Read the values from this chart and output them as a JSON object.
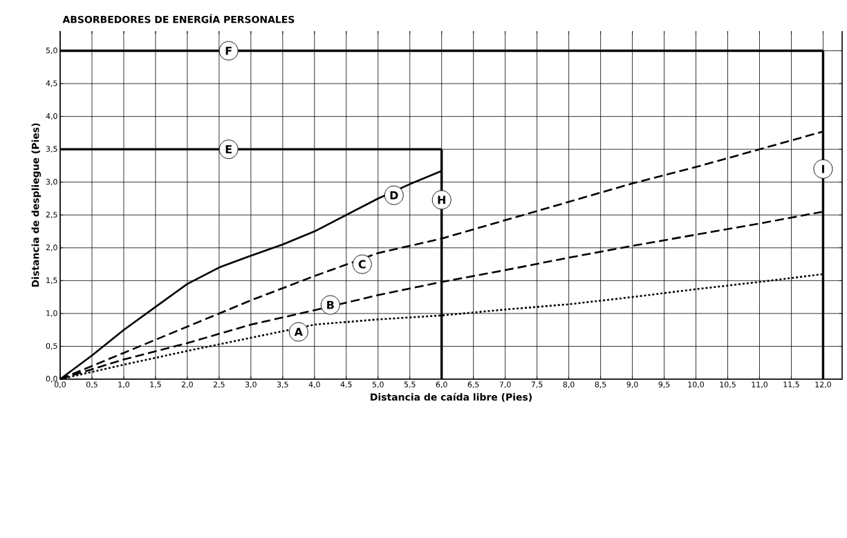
{
  "chart_data": {
    "type": "line",
    "title": "ABSORBEDORES DE ENERGÍA PERSONALES",
    "xlabel": "Distancia de caída libre (Pies)",
    "ylabel": "Distancia de despliegue (Pies)",
    "xlim": [
      0,
      12.3
    ],
    "ylim": [
      0,
      5.3
    ],
    "xticks": [
      {
        "value": 0,
        "label": "0,0"
      },
      {
        "value": 0.5,
        "label": "0,5"
      },
      {
        "value": 1,
        "label": "1,0"
      },
      {
        "value": 1.5,
        "label": "1,5"
      },
      {
        "value": 2,
        "label": "2,0"
      },
      {
        "value": 2.5,
        "label": "2,5"
      },
      {
        "value": 3,
        "label": "3,0"
      },
      {
        "value": 3.5,
        "label": "3,5"
      },
      {
        "value": 4,
        "label": "4,0"
      },
      {
        "value": 4.5,
        "label": "4,5"
      },
      {
        "value": 5,
        "label": "5,0"
      },
      {
        "value": 5.5,
        "label": "5,5"
      },
      {
        "value": 6,
        "label": "6,0"
      },
      {
        "value": 6.5,
        "label": "6,5"
      },
      {
        "value": 7,
        "label": "7,0"
      },
      {
        "value": 7.5,
        "label": "7,5"
      },
      {
        "value": 8,
        "label": "8,0"
      },
      {
        "value": 8.5,
        "label": "8,5"
      },
      {
        "value": 9,
        "label": "9,0"
      },
      {
        "value": 9.5,
        "label": "9,5"
      },
      {
        "value": 10,
        "label": "10,0"
      },
      {
        "value": 10.5,
        "label": "10,5"
      },
      {
        "value": 11,
        "label": "11,0"
      },
      {
        "value": 11.5,
        "label": "11,5"
      },
      {
        "value": 12,
        "label": "12,0"
      }
    ],
    "yticks": [
      {
        "value": 0,
        "label": "0,0"
      },
      {
        "value": 0.5,
        "label": "0,5"
      },
      {
        "value": 1,
        "label": "1,0"
      },
      {
        "value": 1.5,
        "label": "1,5"
      },
      {
        "value": 2,
        "label": "2,0"
      },
      {
        "value": 2.5,
        "label": "2,5"
      },
      {
        "value": 3,
        "label": "3,0"
      },
      {
        "value": 3.5,
        "label": "3,5"
      },
      {
        "value": 4,
        "label": "4,0"
      },
      {
        "value": 4.5,
        "label": "4,5"
      },
      {
        "value": 5,
        "label": "5,0"
      }
    ],
    "grid": true,
    "marker": "none",
    "series": [
      {
        "color": "#000000",
        "line_style": "dotted",
        "x": [
          0,
          1,
          2,
          3,
          4,
          5,
          6,
          7,
          8,
          9,
          10,
          11,
          12
        ],
        "values": [
          0,
          0.22,
          0.43,
          0.63,
          0.83,
          0.91,
          0.97,
          1.06,
          1.14,
          1.25,
          1.37,
          1.48,
          1.6
        ]
      },
      {
        "color": "#000000",
        "line_style": "dashed",
        "x": [
          0,
          1,
          2,
          3,
          4,
          5,
          6,
          7,
          8,
          9,
          10,
          11,
          12
        ],
        "values": [
          0,
          0.3,
          0.55,
          0.83,
          1.05,
          1.28,
          1.48,
          1.66,
          1.85,
          2.03,
          2.2,
          2.37,
          2.55
        ]
      },
      {
        "color": "#000000",
        "line_style": "dashed",
        "x": [
          0,
          1,
          2,
          3,
          4,
          5,
          6,
          7,
          8,
          9,
          10,
          11,
          12
        ],
        "values": [
          0,
          0.4,
          0.8,
          1.2,
          1.57,
          1.92,
          2.14,
          2.42,
          2.7,
          2.98,
          3.23,
          3.5,
          3.77
        ]
      },
      {
        "color": "#000000",
        "line_style": "solid",
        "x": [
          0,
          0.5,
          1,
          1.5,
          2,
          2.5,
          3,
          3.5,
          4,
          4.5,
          5,
          5.5,
          6
        ],
        "values": [
          0,
          0.36,
          0.75,
          1.1,
          1.45,
          1.7,
          1.88,
          2.05,
          2.25,
          2.5,
          2.75,
          2.97,
          3.17
        ]
      },
      {
        "color": "#000000",
        "line_style": "solid",
        "x": [
          0,
          6
        ],
        "values": [
          3.5,
          3.5
        ]
      },
      {
        "color": "#000000",
        "line_style": "solid",
        "x": [
          6,
          6
        ],
        "values": [
          3.5,
          0
        ]
      },
      {
        "color": "#000000",
        "line_style": "solid",
        "x": [
          0,
          12
        ],
        "values": [
          5,
          5
        ]
      },
      {
        "color": "#000000",
        "line_style": "solid",
        "x": [
          12,
          12
        ],
        "values": [
          5,
          0
        ]
      }
    ],
    "annotations": [
      {
        "text": "A",
        "x": 3.75,
        "y": 0.72
      },
      {
        "text": "B",
        "x": 4.25,
        "y": 1.13
      },
      {
        "text": "C",
        "x": 4.75,
        "y": 1.75
      },
      {
        "text": "D",
        "x": 5.25,
        "y": 2.8
      },
      {
        "text": "E",
        "x": 2.65,
        "y": 3.5
      },
      {
        "text": "F",
        "x": 2.65,
        "y": 5
      },
      {
        "text": "H",
        "x": 6,
        "y": 2.73
      },
      {
        "text": "I",
        "x": 12,
        "y": 3.2
      }
    ]
  }
}
